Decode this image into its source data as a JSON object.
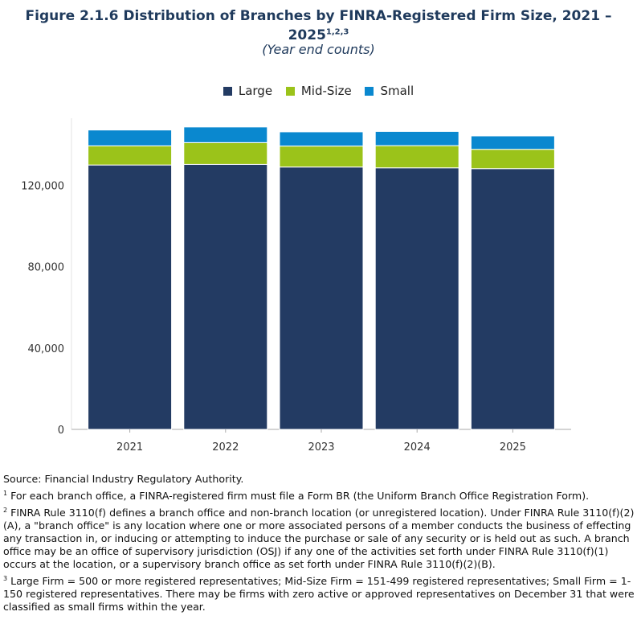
{
  "title": {
    "main": "Figure 2.1.6 Distribution of Branches by FINRA-Registered Firm Size, 2021 – 2025",
    "superscript": "1,2,3",
    "subtitle": "(Year end counts)"
  },
  "colors": {
    "large": "#233b63",
    "midsize": "#9bc31a",
    "small": "#0a88cf",
    "grid": "#e3e3e3",
    "axis": "#aaaaaa"
  },
  "chart_data": {
    "type": "bar",
    "stacked": true,
    "categories": [
      "2021",
      "2022",
      "2023",
      "2024",
      "2025"
    ],
    "series": [
      {
        "name": "Large",
        "values": [
          130000,
          130300,
          129000,
          128600,
          128200
        ]
      },
      {
        "name": "Mid-Size",
        "values": [
          9400,
          10700,
          10300,
          10900,
          9500
        ]
      },
      {
        "name": "Small",
        "values": [
          7800,
          7700,
          7000,
          7000,
          6600
        ]
      }
    ],
    "ylim": [
      0,
      153000
    ],
    "yticks": [
      0,
      40000,
      80000,
      120000
    ],
    "ytick_labels": [
      "0",
      "40,000",
      "80,000",
      "120,000"
    ],
    "legend_position": "top-center",
    "grid": false,
    "xlabel": "",
    "ylabel": ""
  },
  "notes": {
    "source": "Source: Financial Industry Regulatory Authority.",
    "n1_mark": "1",
    "n1": " For each branch office, a FINRA-registered firm must file a Form BR (the Uniform Branch Office Registration Form).",
    "n2_mark": "2",
    "n2": " FINRA Rule 3110(f) defines a branch office and non-branch location (or unregistered location). Under FINRA Rule 3110(f)(2)(A), a \"branch office\" is any location where one or more associated persons of a member conducts the business of effecting any transaction in, or inducing or attempting to induce the purchase or sale of any security or is held out as such. A branch office may be an office of supervisory jurisdiction (OSJ) if any one of the activities set forth under FINRA Rule 3110(f)(1) occurs at the location, or a supervisory branch office as set forth under FINRA Rule 3110(f)(2)(B).",
    "n3_mark": "3",
    "n3": " Large Firm = 500 or more registered representatives; Mid-Size Firm = 151-499 registered representatives; Small Firm = 1-150 registered representatives. There may be firms with zero active or approved representatives on December 31 that were classified as small firms within the year."
  }
}
